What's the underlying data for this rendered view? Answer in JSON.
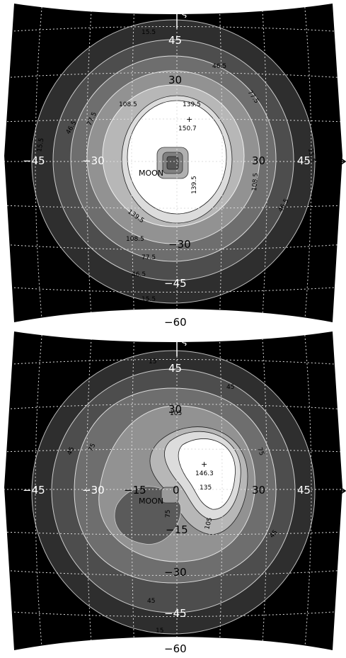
{
  "chart_data": [
    {
      "type": "contour",
      "axes": {
        "horizontal": "η",
        "vertical": "ξ"
      },
      "xlim": [
        -45,
        45
      ],
      "ylim": [
        -60,
        45
      ],
      "tick_labels": {
        "xi": [
          "45",
          "30",
          "−30",
          "−45",
          "−60"
        ],
        "eta": [
          "−45",
          "−30",
          "30",
          "45"
        ]
      },
      "levels": [
        "15.5",
        "46.5",
        "77.5",
        "108.5",
        "139.5"
      ],
      "max_label": "150.7",
      "annotation": "MOON"
    },
    {
      "type": "contour",
      "axes": {
        "horizontal": "η",
        "vertical": "ξ"
      },
      "xlim": [
        -45,
        45
      ],
      "ylim": [
        -60,
        45
      ],
      "tick_labels": {
        "xi": [
          "45",
          "30",
          "−15",
          "−30",
          "−45",
          "−60"
        ],
        "eta": [
          "−45",
          "−30",
          "−15",
          "0",
          "30",
          "45"
        ]
      },
      "levels": [
        "15",
        "45",
        "75",
        "105",
        "135"
      ],
      "max_label": "146.3",
      "annotation": "MOON"
    }
  ]
}
